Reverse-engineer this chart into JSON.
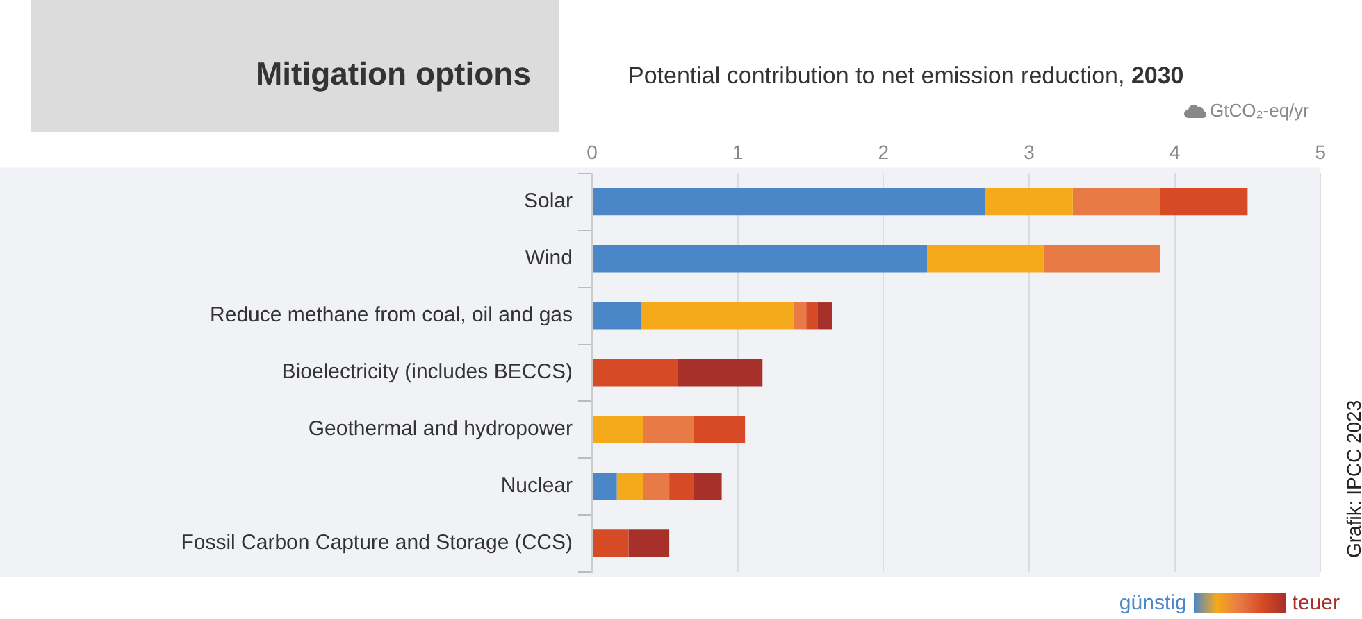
{
  "chart_data": {
    "type": "bar",
    "orientation": "horizontal",
    "stacked": true,
    "title": "Mitigation options",
    "xlabel": "Potential contribution to net emission reduction, 2030",
    "categories": [
      "Solar",
      "Wind",
      "Reduce methane from coal, oil and gas",
      "Bioelectricity (includes BECCS)",
      "Geothermal and hydropower",
      "Nuclear",
      "Fossil Carbon Capture and Storage (CCS)"
    ],
    "series": [
      {
        "color": "#4a86c8",
        "values": [
          2.7,
          2.3,
          0.34,
          null,
          null,
          0.17,
          null
        ]
      },
      {
        "color": "#f5aa1c",
        "values": [
          0.6,
          0.8,
          1.04,
          null,
          0.35,
          0.18,
          null
        ]
      },
      {
        "color": "#e87a45",
        "values": [
          0.6,
          0.8,
          0.09,
          null,
          0.35,
          0.18,
          null
        ]
      },
      {
        "color": "#d64a26",
        "values": [
          0.6,
          null,
          0.08,
          0.59,
          0.35,
          0.17,
          0.25
        ]
      },
      {
        "color": "#a8302a",
        "values": [
          null,
          null,
          0.1,
          0.58,
          null,
          0.19,
          0.28
        ]
      }
    ],
    "xlim": [
      0,
      5
    ],
    "xticks": [
      0,
      1,
      2,
      3,
      4,
      5
    ],
    "grid": "x",
    "legend": false,
    "annotations": [
      "GtCO₂-eq/yr",
      "günstig",
      "teuer",
      "Grafik: IPCC 2023"
    ]
  }
}
